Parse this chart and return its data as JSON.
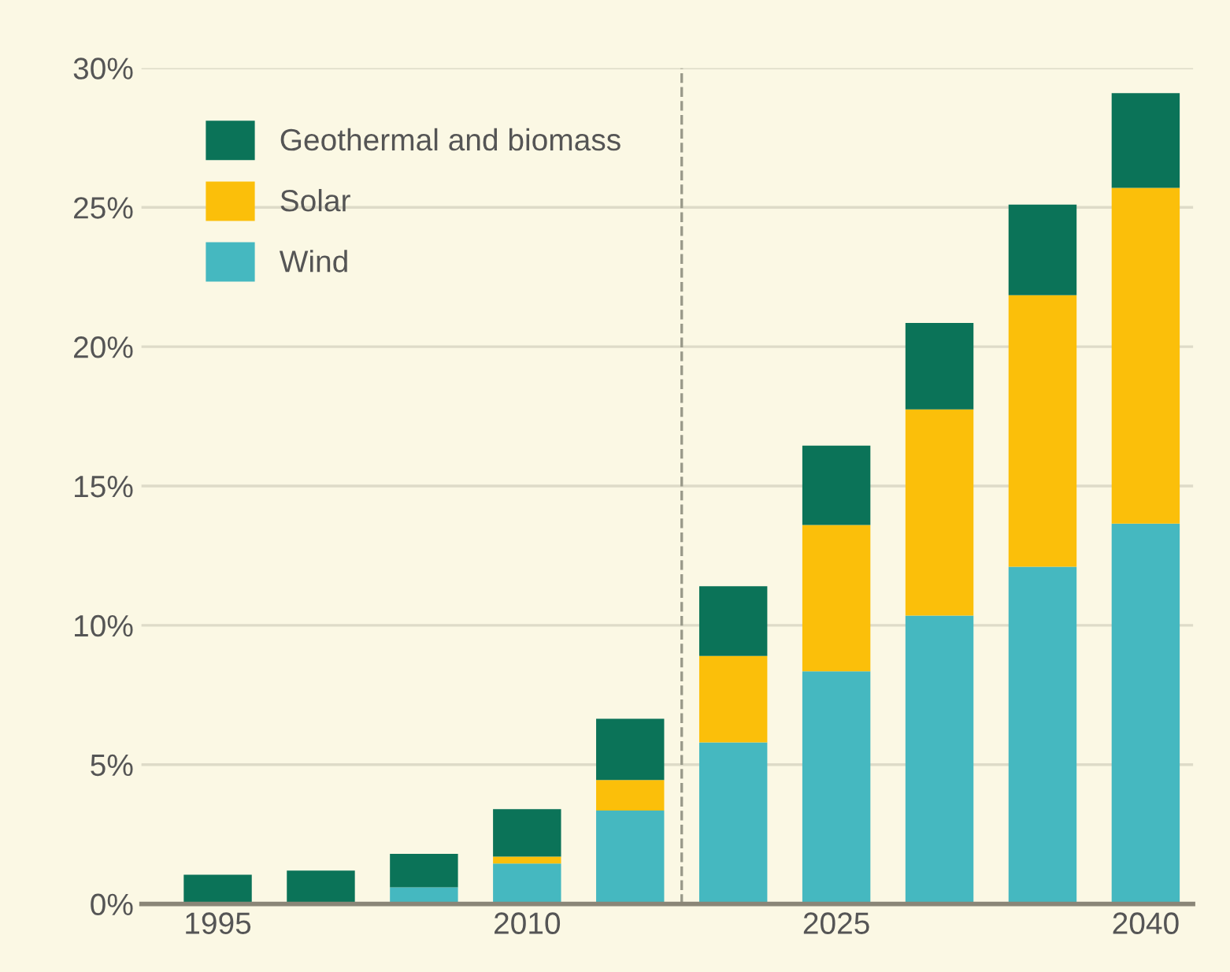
{
  "chart_data": {
    "type": "bar",
    "stacked": true,
    "x": [
      1995,
      2000,
      2005,
      2010,
      2015,
      2020,
      2025,
      2030,
      2035,
      2040
    ],
    "series": [
      {
        "name": "Wind",
        "color": "#45b8c0",
        "values": [
          0,
          null,
          0.6,
          1.45,
          3.35,
          5.8,
          8.35,
          10.35,
          12.1,
          13.65
        ]
      },
      {
        "name": "Solar",
        "color": "#fbbf0a",
        "values": [
          0,
          0,
          0,
          0.25,
          1.1,
          3.1,
          5.25,
          7.4,
          9.75,
          12.05
        ]
      },
      {
        "name": "Geothermal and biomass",
        "color": "#0b7358",
        "values": [
          1.05,
          1.2,
          1.2,
          1.7,
          2.2,
          2.5,
          2.85,
          3.1,
          3.25,
          3.4
        ]
      }
    ],
    "xlim": [
      1991.3,
      2042.3
    ],
    "xticks": [
      1995,
      2010,
      2025,
      2040
    ],
    "ylim": [
      0,
      30
    ],
    "yticks": [
      {
        "value": 0,
        "label": "0%"
      },
      {
        "value": 5,
        "label": "5%"
      },
      {
        "value": 10,
        "label": "10%"
      },
      {
        "value": 15,
        "label": "15%"
      },
      {
        "value": 20,
        "label": "20%"
      },
      {
        "value": 25,
        "label": "25%"
      },
      {
        "value": 30,
        "label": "30%"
      }
    ],
    "ref_lines": [
      {
        "axis": "x",
        "value": 2017.5,
        "color": "#9a9a8a",
        "line_style": "dashed"
      }
    ],
    "grid": "y",
    "legend": "top left"
  }
}
